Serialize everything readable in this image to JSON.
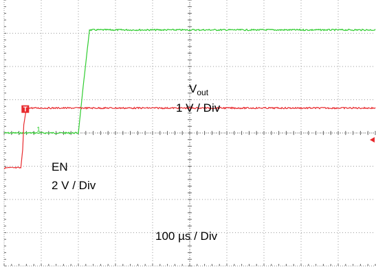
{
  "chart_data": {
    "type": "line",
    "xlim": [
      0,
      1000
    ],
    "x_unit": "µs",
    "grid": true,
    "grid_divisions": {
      "x": 10,
      "y": 8
    },
    "series": [
      {
        "name": "Vout",
        "color": "#2ecc2e",
        "ylim": [
          -4,
          4
        ],
        "y_unit": "V",
        "x": [
          0,
          200,
          213,
          230,
          1000
        ],
        "y": [
          0.0,
          0.0,
          1.4,
          3.1,
          3.1
        ]
      },
      {
        "name": "EN",
        "color": "#e8282c",
        "ylim": [
          -8,
          8
        ],
        "y_unit": "V",
        "x": [
          0,
          45,
          50,
          53,
          60,
          1000
        ],
        "y": [
          -2.1,
          -2.1,
          -1.0,
          0.5,
          1.5,
          1.5
        ]
      }
    ],
    "markers": {
      "vout_ground": "1",
      "en_trigger": "T"
    },
    "labels": {
      "vout_name": "V",
      "vout_sub": "out",
      "vout_scale": "1 V / Div",
      "en_name": "EN",
      "en_scale": "2 V / Div",
      "time_scale": "100 µs / Div"
    }
  }
}
